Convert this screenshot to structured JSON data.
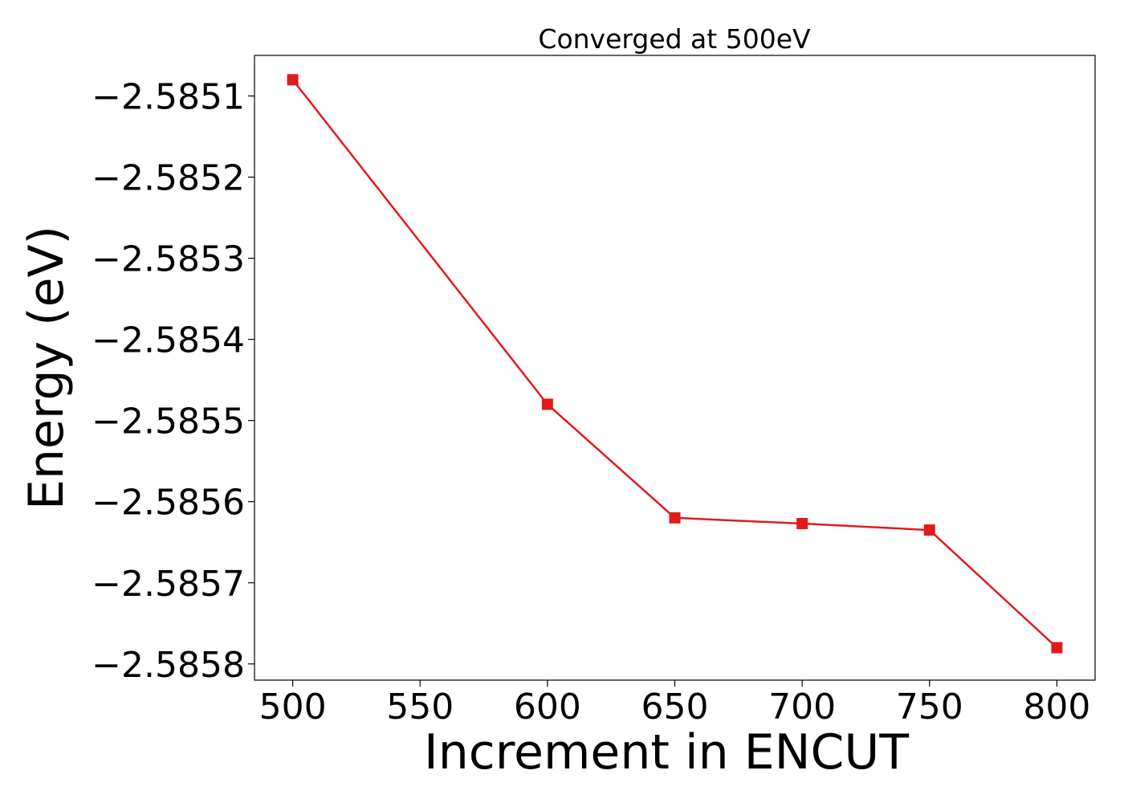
{
  "chart_data": {
    "type": "line",
    "title": "Converged at 500eV",
    "xlabel": "Increment in ENCUT",
    "ylabel": "Energy (eV)",
    "x": [
      500,
      600,
      650,
      700,
      750,
      800
    ],
    "series": [
      {
        "color": "#e31a1c",
        "marker": "square",
        "values": [
          -2.58508,
          -2.58548,
          -2.58562,
          -2.585627,
          -2.585635,
          -2.58578
        ]
      }
    ],
    "xlim": [
      485,
      815
    ],
    "ylim": [
      -2.58582,
      -2.58505
    ],
    "xticks": [
      500,
      550,
      600,
      650,
      700,
      750,
      800
    ],
    "xtick_labels": [
      "500",
      "550",
      "600",
      "650",
      "700",
      "750",
      "800"
    ],
    "yticks": [
      -2.5851,
      -2.5852,
      -2.5853,
      -2.5854,
      -2.5855,
      -2.5856,
      -2.5857,
      -2.5858
    ],
    "ytick_labels": [
      "−2.5851",
      "−2.5852",
      "−2.5853",
      "−2.5854",
      "−2.5855",
      "−2.5856",
      "−2.5857",
      "−2.5858"
    ],
    "grid": false,
    "legend": "none"
  }
}
